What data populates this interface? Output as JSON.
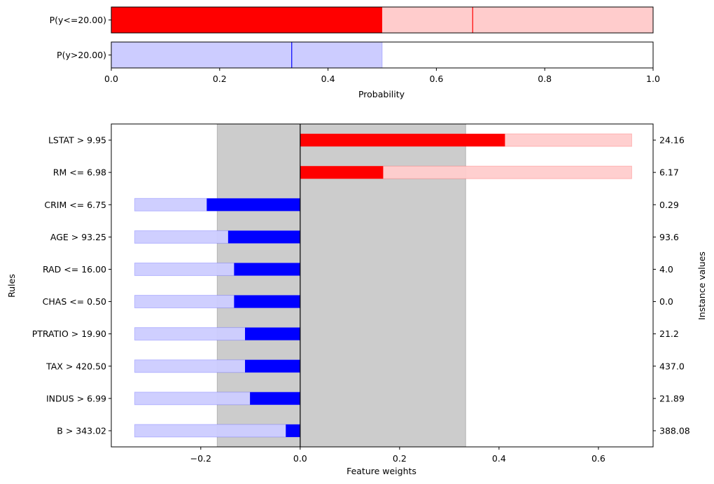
{
  "chart_data": [
    {
      "type": "bar",
      "orientation": "horizontal",
      "xlabel": "Probability",
      "xlim": [
        0,
        1
      ],
      "xticks": [
        "0.0",
        "0.2",
        "0.4",
        "0.6",
        "0.8",
        "1.0"
      ],
      "categories": [
        "P(y<=20.00)",
        "P(y>20.00)"
      ],
      "rows": [
        {
          "label": "P(y<=20.00)",
          "value": 0.5,
          "interval": [
            0,
            1
          ],
          "marker": 0.667,
          "color": "#ff0000",
          "light_color": "#ffcccc"
        },
        {
          "label": "P(y>20.00)",
          "value": 0.0,
          "interval": [
            0,
            0.5
          ],
          "marker": 0.333,
          "color": "#0000ff",
          "light_color": "#ccccff"
        }
      ]
    },
    {
      "type": "bar",
      "orientation": "horizontal",
      "xlabel": "Feature weights",
      "ylabel": "Rules",
      "y2label": "Instance values",
      "xlim": [
        -0.38,
        0.71
      ],
      "xticks": [
        "−0.2",
        "0.0",
        "0.2",
        "0.4",
        "0.6"
      ],
      "xtick_values": [
        -0.2,
        0.0,
        0.2,
        0.4,
        0.6
      ],
      "shaded_region": [
        -0.167,
        0.333
      ],
      "positive_color": "#ff0000",
      "negative_color": "#0000ff",
      "rules": [
        {
          "rule": "LSTAT > 9.95",
          "instance_value": "24.16",
          "weight": 0.412,
          "interval": [
            0,
            0.667
          ]
        },
        {
          "rule": "RM <= 6.98",
          "instance_value": "6.17",
          "weight": 0.167,
          "interval": [
            0,
            0.667
          ]
        },
        {
          "rule": "CRIM <= 6.75",
          "instance_value": "0.29",
          "weight": -0.188,
          "interval": [
            -0.333,
            0
          ]
        },
        {
          "rule": "AGE > 93.25",
          "instance_value": "93.6",
          "weight": -0.145,
          "interval": [
            -0.333,
            0
          ]
        },
        {
          "rule": "RAD <= 16.00",
          "instance_value": "4.0",
          "weight": -0.133,
          "interval": [
            -0.333,
            0
          ]
        },
        {
          "rule": "CHAS <= 0.50",
          "instance_value": "0.0",
          "weight": -0.133,
          "interval": [
            -0.333,
            0
          ]
        },
        {
          "rule": "PTRATIO > 19.90",
          "instance_value": "21.2",
          "weight": -0.111,
          "interval": [
            -0.333,
            0
          ]
        },
        {
          "rule": "TAX > 420.50",
          "instance_value": "437.0",
          "weight": -0.111,
          "interval": [
            -0.333,
            0
          ]
        },
        {
          "rule": "INDUS > 6.99",
          "instance_value": "21.89",
          "weight": -0.101,
          "interval": [
            -0.333,
            0
          ]
        },
        {
          "rule": "B > 343.02",
          "instance_value": "388.08",
          "weight": -0.029,
          "interval": [
            -0.333,
            0
          ]
        }
      ]
    }
  ]
}
